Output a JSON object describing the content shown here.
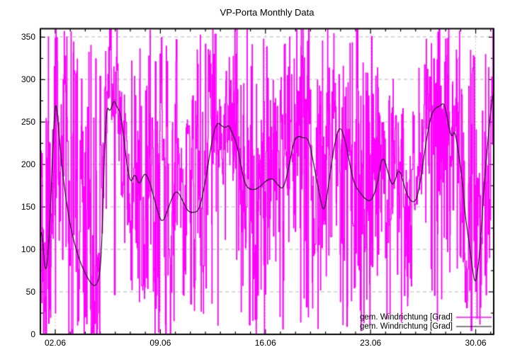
{
  "title": "VP-Porta Monthly Data",
  "legend": {
    "position": "bottom-right-inside",
    "entries": [
      {
        "label": "gem. Windrichtung [Grad]",
        "color": "#ff00ff",
        "series": "measured"
      },
      {
        "label": "gem. Windrichtung [Grad]",
        "color": "#000000",
        "series": "smoothed"
      }
    ]
  },
  "colors": {
    "background": "#ffffff",
    "border": "#000000",
    "grid": "#b4b4b4",
    "text": "#000000",
    "measured": "#ff00ff",
    "smoothed": "#000000"
  },
  "chart_data": {
    "type": "line",
    "title": "VP-Porta Monthly Data",
    "xlabel": "",
    "ylabel": "",
    "x_unit": "date (day of June)",
    "y_unit": "wind direction [Grad]",
    "xlim_days": [
      1.01,
      31.2
    ],
    "ylim": [
      0,
      360
    ],
    "y_ticks_major": [
      0,
      50,
      100,
      150,
      200,
      250,
      300,
      350
    ],
    "y_tick_minor_step": 25,
    "x_ticks_major": [
      {
        "day": 2,
        "label": "02.06"
      },
      {
        "day": 9,
        "label": "09.06"
      },
      {
        "day": 16,
        "label": "16.06"
      },
      {
        "day": 23,
        "label": "23.06"
      },
      {
        "day": 30,
        "label": "30.06"
      }
    ],
    "x_tick_minor_step_days": 1,
    "grid": {
      "horizontal": "dashed",
      "vertical": "dotted",
      "color": "#b4b4b4"
    },
    "series": [
      {
        "name": "gem. Windrichtung [Grad]",
        "role": "measured",
        "style": "noisy-steps",
        "color": "#ff00ff",
        "line_width": 1.4,
        "description": "High-frequency measured wind direction; step trace jumping across full 0-360 range with frequent wrap-around spikes, clipped flat runs at 0 and 360; density varies by day",
        "noise": {
          "seed": 42,
          "samples": 1600,
          "hold_prob": 0.22,
          "spike_prob_base": 0.4,
          "walk_decay": 0.75,
          "walk_step": 90,
          "local_jitter": 165,
          "density_per_day": [
            0.95,
            0.97,
            0.95,
            0.88,
            0.55,
            0.5,
            0.85,
            0.95,
            0.9,
            0.65,
            0.75,
            0.65,
            0.4,
            0.7,
            0.9,
            0.92,
            0.9,
            0.92,
            0.92,
            0.9,
            0.85,
            0.85,
            0.8,
            0.7,
            0.6,
            0.45,
            0.85,
            0.92,
            0.9,
            0.85,
            0.9
          ]
        }
      },
      {
        "name": "gem. Windrichtung [Grad]",
        "role": "smoothed",
        "style": "smooth-line",
        "color": "#000000",
        "line_width": 1.1,
        "points": [
          [
            1.0,
            118
          ],
          [
            1.1,
            128
          ],
          [
            1.35,
            64
          ],
          [
            1.6,
            110
          ],
          [
            1.8,
            205
          ],
          [
            2.0,
            277
          ],
          [
            2.15,
            258
          ],
          [
            2.4,
            205
          ],
          [
            2.7,
            160
          ],
          [
            3.1,
            118
          ],
          [
            3.65,
            85
          ],
          [
            4.1,
            68
          ],
          [
            4.45,
            58
          ],
          [
            4.75,
            57
          ],
          [
            5.0,
            72
          ],
          [
            5.15,
            130
          ],
          [
            5.3,
            228
          ],
          [
            5.45,
            270
          ],
          [
            5.65,
            261
          ],
          [
            5.9,
            277
          ],
          [
            6.1,
            268
          ],
          [
            6.35,
            261
          ],
          [
            6.6,
            227
          ],
          [
            6.8,
            195
          ],
          [
            7.05,
            177
          ],
          [
            7.3,
            191
          ],
          [
            7.6,
            174
          ],
          [
            7.95,
            192
          ],
          [
            8.3,
            180
          ],
          [
            8.7,
            152
          ],
          [
            9.1,
            129
          ],
          [
            9.5,
            147
          ],
          [
            9.8,
            162
          ],
          [
            10.1,
            170
          ],
          [
            10.45,
            159
          ],
          [
            10.8,
            145
          ],
          [
            11.2,
            143
          ],
          [
            11.6,
            146
          ],
          [
            12.0,
            180
          ],
          [
            12.3,
            214
          ],
          [
            12.6,
            242
          ],
          [
            12.85,
            250
          ],
          [
            13.1,
            245
          ],
          [
            13.35,
            243
          ],
          [
            13.55,
            247
          ],
          [
            13.8,
            237
          ],
          [
            14.1,
            224
          ],
          [
            14.35,
            200
          ],
          [
            14.6,
            178
          ],
          [
            14.9,
            171
          ],
          [
            15.3,
            170
          ],
          [
            15.7,
            175
          ],
          [
            16.1,
            182
          ],
          [
            16.5,
            184
          ],
          [
            16.9,
            174
          ],
          [
            17.2,
            171
          ],
          [
            17.55,
            196
          ],
          [
            17.9,
            229
          ],
          [
            18.2,
            234
          ],
          [
            18.5,
            231
          ],
          [
            18.85,
            232
          ],
          [
            19.2,
            202
          ],
          [
            19.55,
            169
          ],
          [
            19.9,
            139
          ],
          [
            20.25,
            183
          ],
          [
            20.6,
            225
          ],
          [
            20.95,
            247
          ],
          [
            21.3,
            230
          ],
          [
            21.6,
            202
          ],
          [
            21.9,
            177
          ],
          [
            22.25,
            168
          ],
          [
            22.7,
            158
          ],
          [
            23.1,
            157
          ],
          [
            23.5,
            180
          ],
          [
            23.8,
            214
          ],
          [
            24.2,
            188
          ],
          [
            24.5,
            172
          ],
          [
            24.9,
            199
          ],
          [
            25.3,
            170
          ],
          [
            25.7,
            155
          ],
          [
            26.1,
            158
          ],
          [
            26.45,
            196
          ],
          [
            26.7,
            227
          ],
          [
            27.0,
            257
          ],
          [
            27.3,
            267
          ],
          [
            27.6,
            268
          ],
          [
            27.9,
            274
          ],
          [
            28.15,
            250
          ],
          [
            28.4,
            230
          ],
          [
            28.6,
            242
          ],
          [
            28.85,
            215
          ],
          [
            29.1,
            183
          ],
          [
            29.3,
            140
          ],
          [
            29.55,
            110
          ],
          [
            29.75,
            82
          ],
          [
            29.95,
            58
          ],
          [
            30.15,
            75
          ],
          [
            30.35,
            115
          ],
          [
            30.55,
            174
          ],
          [
            30.75,
            215
          ],
          [
            30.95,
            255
          ],
          [
            31.1,
            278
          ],
          [
            31.2,
            284
          ]
        ]
      }
    ]
  }
}
